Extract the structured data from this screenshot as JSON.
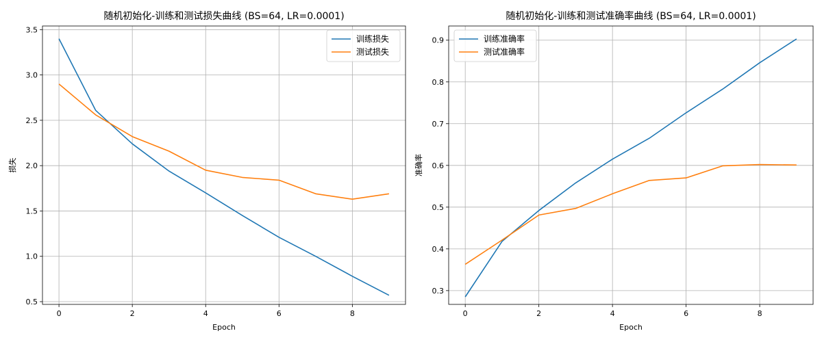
{
  "chart_data": [
    {
      "type": "line",
      "title": "随机初始化-训练和测试损失曲线 (BS=64, LR=0.0001)",
      "xlabel": "Epoch",
      "ylabel": "损失",
      "x": [
        0,
        1,
        2,
        3,
        4,
        5,
        6,
        7,
        8,
        9
      ],
      "xlim": [
        -0.45,
        9.45
      ],
      "ylim": [
        0.47,
        3.54
      ],
      "xticks": [
        0,
        2,
        4,
        6,
        8
      ],
      "yticks": [
        0.5,
        1.0,
        1.5,
        2.0,
        2.5,
        3.0,
        3.5
      ],
      "ytick_labels": [
        "0.5",
        "1.0",
        "1.5",
        "2.0",
        "2.5",
        "3.0",
        "3.5"
      ],
      "grid": true,
      "legend_position": "upper right",
      "series": [
        {
          "name": "训练损失",
          "color": "#1f77b4",
          "values": [
            3.4,
            2.61,
            2.24,
            1.94,
            1.7,
            1.45,
            1.21,
            1.0,
            0.78,
            0.57
          ]
        },
        {
          "name": "测试损失",
          "color": "#ff7f0e",
          "values": [
            2.9,
            2.56,
            2.32,
            2.16,
            1.95,
            1.87,
            1.84,
            1.69,
            1.63,
            1.69
          ]
        }
      ]
    },
    {
      "type": "line",
      "title": "随机初始化-训练和测试准确率曲线 (BS=64, LR=0.0001)",
      "xlabel": "Epoch",
      "ylabel": "准确率",
      "x": [
        0,
        1,
        2,
        3,
        4,
        5,
        6,
        7,
        8,
        9
      ],
      "xlim": [
        -0.45,
        9.45
      ],
      "ylim": [
        0.267,
        0.934
      ],
      "xticks": [
        0,
        2,
        4,
        6,
        8
      ],
      "yticks": [
        0.3,
        0.4,
        0.5,
        0.6,
        0.7,
        0.8,
        0.9
      ],
      "ytick_labels": [
        "0.3",
        "0.4",
        "0.5",
        "0.6",
        "0.7",
        "0.8",
        "0.9"
      ],
      "grid": true,
      "legend_position": "upper left",
      "series": [
        {
          "name": "训练准确率",
          "color": "#1f77b4",
          "values": [
            0.285,
            0.418,
            0.492,
            0.558,
            0.615,
            0.665,
            0.726,
            0.783,
            0.846,
            0.903
          ]
        },
        {
          "name": "测试准确率",
          "color": "#ff7f0e",
          "values": [
            0.363,
            0.421,
            0.481,
            0.497,
            0.532,
            0.564,
            0.57,
            0.599,
            0.602,
            0.601
          ]
        }
      ]
    }
  ]
}
